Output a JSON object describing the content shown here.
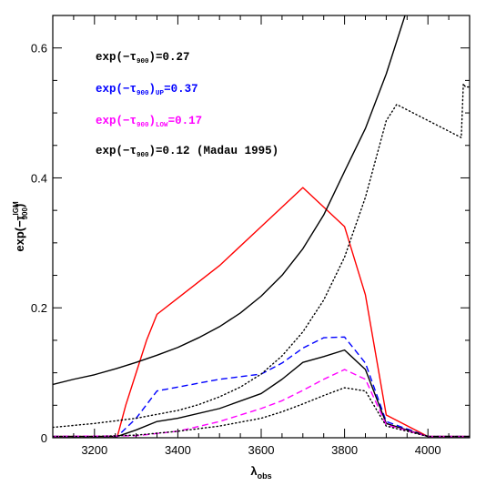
{
  "chart_data": {
    "type": "line",
    "xlabel": "λ",
    "xlabel_sub": "obs",
    "ylabel": "exp(−τ",
    "ylabel_sup": "IGM",
    "ylabel_sub": "900",
    "ylabel_close": ")",
    "xlim": [
      3100,
      4100
    ],
    "ylim": [
      0,
      0.65
    ],
    "xticks": [
      3200,
      3400,
      3600,
      3800,
      4000
    ],
    "xtick_labels": [
      "3200",
      "3400",
      "3600",
      "3800",
      "4000"
    ],
    "yticks": [
      0,
      0.2,
      0.4,
      0.6
    ],
    "ytick_labels": [
      "0",
      "0.2",
      "0.4",
      "0.6"
    ],
    "annotations": [
      {
        "pre": "exp(−τ",
        "sub1": "900",
        "mid": ")",
        "sub2": "",
        "post": "=0.27",
        "color": "#000000"
      },
      {
        "pre": "exp(−τ",
        "sub1": "900",
        "mid": ")",
        "sub2": "UP",
        "post": "=0.37",
        "color": "#0000ff"
      },
      {
        "pre": "exp(−τ",
        "sub1": "900",
        "mid": ")",
        "sub2": "LOW",
        "post": "=0.17",
        "color": "#ff00ff"
      },
      {
        "pre": "exp(−τ",
        "sub1": "900",
        "mid": ")",
        "sub2": "",
        "post": "=0.12 (Madau 1995)",
        "color": "#000000"
      }
    ],
    "series": [
      {
        "color": "#ff0000",
        "style": "solid",
        "x": [
          3100,
          3255,
          3275,
          3300,
          3325,
          3350,
          3400,
          3500,
          3600,
          3700,
          3800,
          3850,
          3900,
          4000,
          4100
        ],
        "y": [
          0.002,
          0.002,
          0.05,
          0.1,
          0.15,
          0.19,
          0.215,
          0.265,
          0.325,
          0.385,
          0.325,
          0.22,
          0.035,
          0.002,
          0.002
        ]
      },
      {
        "color": "#0000ff",
        "style": "dashed",
        "x": [
          3100,
          3255,
          3300,
          3350,
          3400,
          3500,
          3600,
          3650,
          3700,
          3750,
          3800,
          3850,
          3900,
          4000,
          4100
        ],
        "y": [
          0.002,
          0.002,
          0.03,
          0.072,
          0.078,
          0.09,
          0.098,
          0.115,
          0.138,
          0.154,
          0.155,
          0.115,
          0.025,
          0.002,
          0.002
        ]
      },
      {
        "color": "#000000",
        "style": "solid",
        "x": [
          3100,
          3255,
          3300,
          3350,
          3400,
          3500,
          3600,
          3650,
          3700,
          3750,
          3800,
          3850,
          3900,
          4000,
          4100
        ],
        "y": [
          0.002,
          0.002,
          0.012,
          0.025,
          0.03,
          0.045,
          0.068,
          0.09,
          0.116,
          0.125,
          0.135,
          0.105,
          0.022,
          0.002,
          0.002
        ]
      },
      {
        "color": "#ff00ff",
        "style": "dashed",
        "x": [
          3100,
          3300,
          3400,
          3500,
          3600,
          3650,
          3700,
          3750,
          3800,
          3850,
          3900,
          4000,
          4100
        ],
        "y": [
          0.002,
          0.003,
          0.01,
          0.025,
          0.045,
          0.057,
          0.073,
          0.09,
          0.105,
          0.09,
          0.02,
          0.002,
          0.002
        ]
      },
      {
        "color": "#000000",
        "style": "dotted",
        "x": [
          3100,
          3200,
          3300,
          3400,
          3500,
          3600,
          3650,
          3700,
          3750,
          3800,
          3850,
          3900,
          4000,
          4100
        ],
        "y": [
          0.002,
          0.002,
          0.004,
          0.01,
          0.018,
          0.03,
          0.04,
          0.052,
          0.065,
          0.077,
          0.072,
          0.018,
          0.002,
          0.002
        ]
      },
      {
        "color": "#000000",
        "style": "solid",
        "x": [
          3100,
          3150,
          3200,
          3250,
          3300,
          3350,
          3400,
          3450,
          3500,
          3550,
          3600,
          3650,
          3700,
          3750,
          3800,
          3850,
          3900,
          3945
        ],
        "y": [
          0.082,
          0.09,
          0.097,
          0.106,
          0.116,
          0.127,
          0.139,
          0.154,
          0.171,
          0.192,
          0.218,
          0.25,
          0.291,
          0.343,
          0.41,
          0.476,
          0.56,
          0.65
        ]
      },
      {
        "color": "#000000",
        "style": "dotted",
        "x": [
          3100,
          3200,
          3300,
          3400,
          3450,
          3500,
          3550,
          3600,
          3650,
          3700,
          3750,
          3800,
          3850,
          3900,
          3925,
          4080,
          4085,
          4090,
          4100
        ],
        "y": [
          0.016,
          0.022,
          0.03,
          0.042,
          0.051,
          0.063,
          0.078,
          0.098,
          0.126,
          0.163,
          0.212,
          0.278,
          0.37,
          0.488,
          0.513,
          0.462,
          0.545,
          0.54,
          0.54
        ]
      }
    ]
  }
}
